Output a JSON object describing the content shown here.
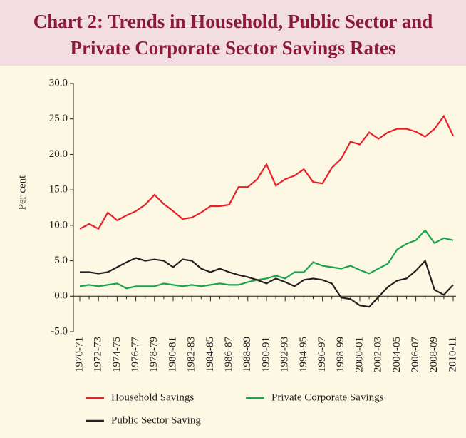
{
  "chart_data": {
    "type": "line",
    "title": [
      "Chart 2: Trends in Household, Public Sector and",
      "Private Corporate Sector Savings Rates"
    ],
    "y_label": "Per cent",
    "categories": [
      "1970-71",
      null,
      "1972-73",
      null,
      "1974-75",
      null,
      "1976-77",
      null,
      "1978-79",
      null,
      "1980-81",
      null,
      "1982-83",
      null,
      "1984-85",
      null,
      "1986-87",
      null,
      "1988-89",
      null,
      "1990-91",
      null,
      "1992-93",
      null,
      "1994-95",
      null,
      "1996-97",
      null,
      "1998-99",
      null,
      "2000-01",
      null,
      "2002-03",
      null,
      "2004-05",
      null,
      "2006-07",
      null,
      "2008-09",
      null,
      "2010-11"
    ],
    "series": [
      {
        "name": "Household Savings",
        "color": "#e8202a",
        "values": [
          9.5,
          10.2,
          9.5,
          11.8,
          10.7,
          11.4,
          12,
          12.9,
          14.3,
          13,
          12,
          10.9,
          11.1,
          11.8,
          12.7,
          12.7,
          12.9,
          15.4,
          15.4,
          16.5,
          18.6,
          15.6,
          16.5,
          17,
          17.9,
          16.1,
          15.9,
          18.1,
          19.4,
          21.8,
          21.4,
          23.1,
          22.2,
          23.1,
          23.6,
          23.6,
          23.2,
          22.5,
          23.6,
          25.4,
          22.6
        ]
      },
      {
        "name": "Private Corporate  Savings",
        "color": "#1aa54a",
        "values": [
          1.4,
          1.6,
          1.4,
          1.6,
          1.8,
          1.1,
          1.4,
          1.4,
          1.4,
          1.8,
          1.6,
          1.4,
          1.6,
          1.4,
          1.6,
          1.8,
          1.6,
          1.6,
          2.0,
          2.3,
          2.5,
          2.9,
          2.5,
          3.4,
          3.4,
          4.8,
          4.3,
          4.1,
          3.9,
          4.3,
          3.7,
          3.2,
          3.9,
          4.6,
          6.6,
          7.4,
          7.9,
          9.3,
          7.5,
          8.2,
          7.9
        ]
      },
      {
        "name": "Public Sector Saving",
        "color": "#231f20",
        "values": [
          3.4,
          3.4,
          3.2,
          3.4,
          4.1,
          4.8,
          5.4,
          5.0,
          5.2,
          5.0,
          4.1,
          5.2,
          5.0,
          3.9,
          3.4,
          3.9,
          3.4,
          3.0,
          2.7,
          2.3,
          1.8,
          2.5,
          2.0,
          1.4,
          2.3,
          2.5,
          2.3,
          1.8,
          -0.2,
          -0.4,
          -1.3,
          -1.5,
          -0.1,
          1.3,
          2.2,
          2.5,
          3.6,
          5.0,
          0.9,
          0.2,
          1.6
        ]
      }
    ],
    "ylim": [
      -5,
      30
    ],
    "yticks": [
      {
        "value": -5,
        "label": "-5.0"
      },
      {
        "value": 0,
        "label": "0.0"
      },
      {
        "value": 5,
        "label": "5.0"
      },
      {
        "value": 10,
        "label": "10.0"
      },
      {
        "value": 15,
        "label": "15.0"
      },
      {
        "value": 20,
        "label": "20.0"
      },
      {
        "value": 25,
        "label": "25.0"
      },
      {
        "value": 30,
        "label": "30.0"
      }
    ]
  }
}
